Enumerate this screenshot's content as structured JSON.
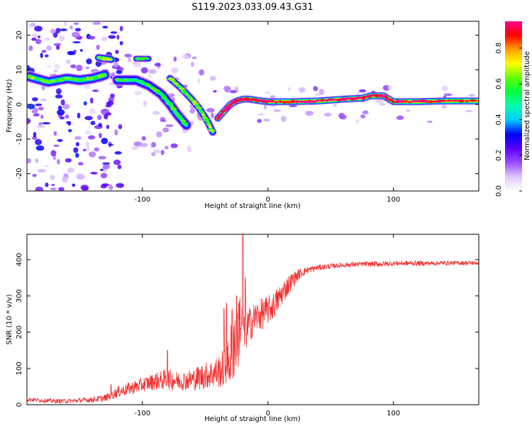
{
  "figure": {
    "title": "S119.2023.033.09.43.G31"
  },
  "colorbar": {
    "label": "Normalized spectral amplitude",
    "ticks": [
      0.0,
      0.2,
      0.4,
      0.6,
      0.8
    ],
    "range": [
      0.0,
      0.95
    ],
    "colors": [
      "#ffffff",
      "#e0c8ff",
      "#9a4dff",
      "#5a00ff",
      "#0000ff",
      "#00c8ff",
      "#00ffb0",
      "#00ff40",
      "#60ff00",
      "#ffff00",
      "#ffa000",
      "#ff0000",
      "#ff0090"
    ]
  },
  "chart_data": [
    {
      "type": "heatmap",
      "xlabel": "Height of straight line (km)",
      "ylabel": "Frequency (Hz)",
      "xlim": [
        -192,
        168
      ],
      "ylim": [
        -25,
        24
      ],
      "xticks": [
        -100,
        0,
        100
      ],
      "yticks": [
        -20,
        -10,
        0,
        10,
        20
      ],
      "grid": false,
      "ridges": [
        {
          "name": "",
          "points": [
            [
              -190,
              8
            ],
            [
              -175,
              6.5
            ],
            [
              -160,
              7.5
            ],
            [
              -150,
              7
            ],
            [
              -140,
              7.5
            ],
            [
              -130,
              8.5
            ]
          ],
          "amplitude": 0.55,
          "width_hz": 2.5
        },
        {
          "name": "",
          "points": [
            [
              -135,
              13.5
            ],
            [
              -125,
              13
            ]
          ],
          "amplitude": 0.6,
          "width_hz": 1.8
        },
        {
          "name": "",
          "points": [
            [
              -105,
              13.2
            ],
            [
              -95,
              13.2
            ]
          ],
          "amplitude": 0.5,
          "width_hz": 1.5
        },
        {
          "name": "",
          "points": [
            [
              -120,
              7
            ],
            [
              -105,
              7
            ],
            [
              -95,
              5.5
            ],
            [
              -85,
              3
            ],
            [
              -78,
              0
            ],
            [
              -72,
              -3
            ],
            [
              -65,
              -6
            ]
          ],
          "amplitude": 0.5,
          "width_hz": 2.5
        },
        {
          "name": "",
          "points": [
            [
              -78,
              7.5
            ],
            [
              -70,
              5
            ],
            [
              -62,
              2
            ],
            [
              -55,
              -1
            ],
            [
              -48,
              -5
            ],
            [
              -44,
              -8
            ]
          ],
          "amplitude": 0.55,
          "width_hz": 1.8
        },
        {
          "name": "",
          "points": [
            [
              -40,
              -4
            ],
            [
              -35,
              -2
            ],
            [
              -30,
              0
            ],
            [
              -25,
              1
            ],
            [
              -20,
              1.5
            ],
            [
              -15,
              1.5
            ],
            [
              -5,
              1
            ],
            [
              0,
              0.8
            ],
            [
              20,
              0.8
            ],
            [
              40,
              1
            ],
            [
              60,
              1.5
            ],
            [
              75,
              1.8
            ],
            [
              82,
              2.5
            ],
            [
              92,
              2.5
            ],
            [
              100,
              0.8
            ],
            [
              120,
              0.8
            ],
            [
              140,
              1
            ],
            [
              168,
              1
            ]
          ],
          "amplitude": 0.85,
          "width_hz": 1.6
        }
      ]
    },
    {
      "type": "line",
      "xlabel": "Height of straight line (km)",
      "ylabel": "SNR (10 * v/v)",
      "xlim": [
        -192,
        168
      ],
      "ylim": [
        0,
        470
      ],
      "xticks": [
        -100,
        0,
        100
      ],
      "yticks": [
        0,
        100,
        200,
        300,
        400
      ],
      "grid": false,
      "series": [
        {
          "color": "#f03030",
          "x": [
            -192,
            -180,
            -170,
            -160,
            -150,
            -140,
            -130,
            -125,
            -120,
            -110,
            -100,
            -90,
            -80,
            -75,
            -70,
            -60,
            -55,
            -50,
            -45,
            -40,
            -35,
            -30,
            -28,
            -25,
            -22,
            -20,
            -18,
            -15,
            -10,
            -5,
            0,
            5,
            10,
            15,
            20,
            25,
            30,
            40,
            50,
            60,
            70,
            80,
            90,
            100,
            110,
            120,
            130,
            140,
            150,
            160,
            168
          ],
          "y": [
            15,
            12,
            10,
            10,
            12,
            14,
            18,
            25,
            35,
            45,
            55,
            65,
            70,
            68,
            65,
            70,
            75,
            80,
            85,
            90,
            100,
            120,
            200,
            150,
            250,
            180,
            200,
            220,
            240,
            250,
            260,
            275,
            300,
            325,
            345,
            360,
            370,
            378,
            382,
            385,
            387,
            388,
            388,
            390,
            390,
            390,
            390,
            391,
            391,
            391,
            391
          ],
          "noise": [
            6,
            6,
            6,
            6,
            6,
            8,
            10,
            12,
            15,
            18,
            20,
            24,
            30,
            28,
            25,
            30,
            35,
            38,
            40,
            45,
            55,
            70,
            150,
            80,
            120,
            60,
            55,
            50,
            45,
            45,
            40,
            38,
            35,
            30,
            22,
            15,
            10,
            8,
            7,
            7,
            7,
            7,
            8,
            7,
            7,
            7,
            6,
            6,
            6,
            6,
            6
          ],
          "spikes": [
            [
              -125,
              55
            ],
            [
              -80,
              150
            ],
            [
              -33,
              280
            ],
            [
              -20,
              470
            ],
            [
              -18,
              350
            ],
            [
              -35,
              265
            ],
            [
              -25,
              300
            ]
          ]
        }
      ]
    }
  ]
}
